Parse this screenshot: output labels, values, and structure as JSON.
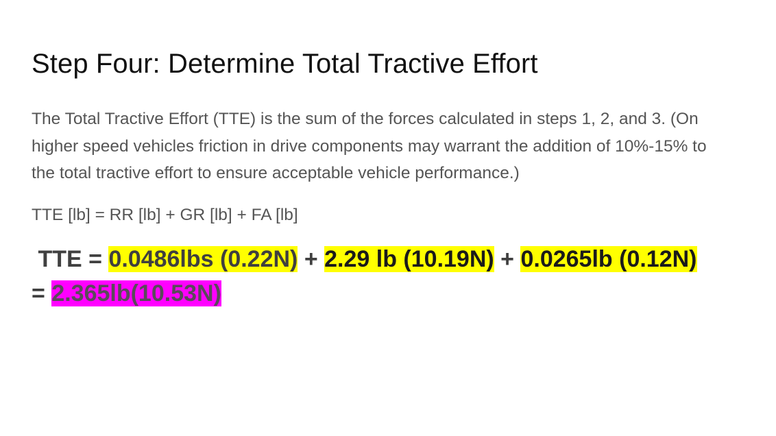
{
  "heading": "Step Four: Determine Total Tractive Effort",
  "paragraph": "The Total Tractive Effort (TTE) is the sum of the forces calculated in steps 1, 2, and 3. (On higher speed vehicles friction in drive components may warrant the addition of 10%-15% to the total tractive effort to ensure acceptable vehicle performance.)",
  "formula": "TTE [lb] = RR [lb] + GR [lb] + FA [lb]",
  "result": {
    "prefix": "TTE =",
    "rr_value": "0.0486lbs (0.22N)",
    "plus_1": "+",
    "gr_value": "2.29 lb (10.19N)",
    "plus_2": "+",
    "fa_value": "0.0265lb (0.12N)",
    "equals": "=",
    "total": "2.365lb(10.53N)"
  },
  "colors": {
    "highlight_yellow": "#ffff00",
    "highlight_magenta": "#ff00ff",
    "body_text": "#555555",
    "heading_text": "#111111"
  }
}
